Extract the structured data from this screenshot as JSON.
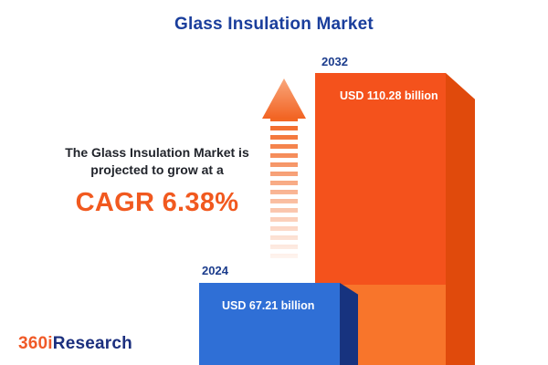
{
  "title": "Glass Insulation Market",
  "annotation": {
    "line1": "The Glass Insulation Market is",
    "line2": "projected to grow at a",
    "cagr": "CAGR 6.38%"
  },
  "bars": {
    "y2024": {
      "year": "2024",
      "value_label": "USD 67.21 billion"
    },
    "y2032": {
      "year": "2032",
      "value_label": "USD 110.28 billion"
    }
  },
  "logo": {
    "prefix": "360i",
    "suffix": "Research"
  },
  "colors": {
    "navy": "#1B3C8C",
    "accent_orange": "#F1591F",
    "bar_blue": "#2F6FD6",
    "bar_blue_side": "#17337F",
    "bar_orange": "#F4521C",
    "bar_orange_side": "#E04A0C",
    "bar_orange_lower": "#F8752B"
  },
  "chart_data": {
    "type": "bar",
    "title": "Glass Insulation Market",
    "categories": [
      "2024",
      "2032"
    ],
    "values": [
      67.21,
      110.28
    ],
    "unit": "USD billion",
    "value_labels": [
      "USD 67.21 billion",
      "USD 110.28 billion"
    ],
    "annotation": "The Glass Insulation Market is projected to grow at a CAGR 6.38%",
    "cagr_percent": 6.38,
    "legend": false,
    "grid": false,
    "orientation": "vertical"
  }
}
